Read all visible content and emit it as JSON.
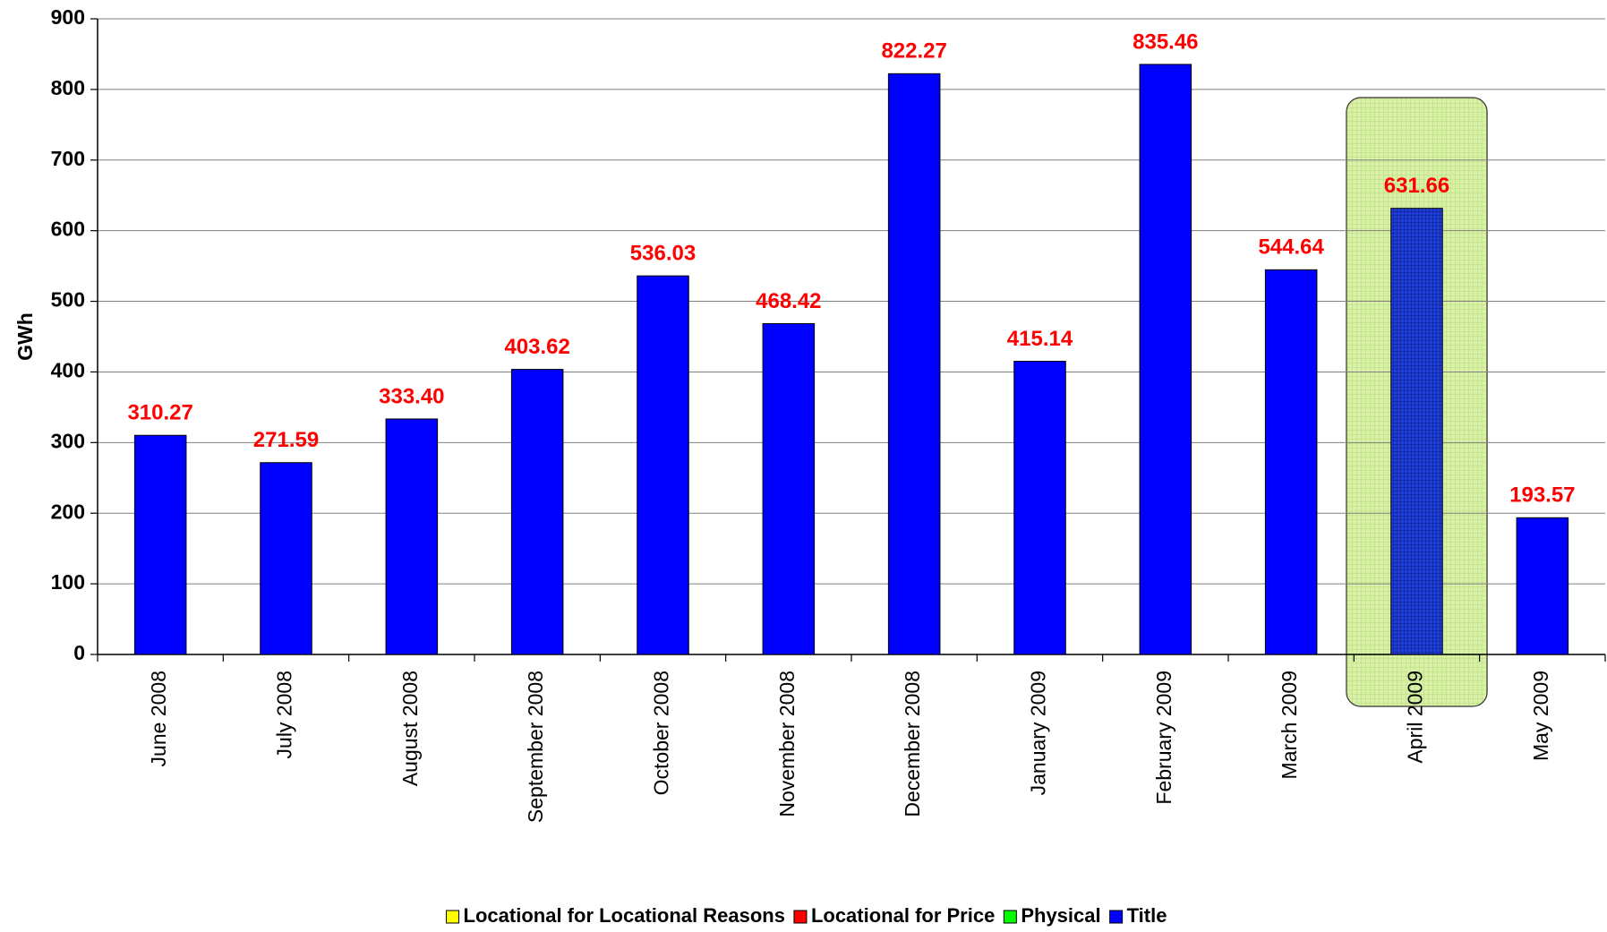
{
  "chart_data": {
    "type": "bar",
    "y_label": "GWh",
    "categories": [
      "June 2008",
      "July 2008",
      "August 2008",
      "September 2008",
      "October 2008",
      "November 2008",
      "December 2008",
      "January 2009",
      "February 2009",
      "March 2009",
      "April 2009",
      "May 2009"
    ],
    "values": [
      310.27,
      271.59,
      333.4,
      403.62,
      536.03,
      468.42,
      822.27,
      415.14,
      835.46,
      544.64,
      631.66,
      193.57
    ],
    "value_labels": [
      "310.27",
      "271.59",
      "333.40",
      "403.62",
      "536.03",
      "468.42",
      "822.27",
      "415.14",
      "835.46",
      "544.64",
      "631.66",
      "193.57"
    ],
    "color": "#0000ff",
    "ylim": [
      0,
      900
    ],
    "yticks": [
      0,
      100,
      200,
      300,
      400,
      500,
      600,
      700,
      800,
      900
    ],
    "grid": true,
    "highlight": {
      "category_index": 10
    },
    "legend": [
      {
        "name": "Locational for Locational Reasons",
        "color": "#ffff00"
      },
      {
        "name": "Locational for Price",
        "color": "#ff0000"
      },
      {
        "name": "Physical",
        "color": "#00ff00"
      },
      {
        "name": "Title",
        "color": "#0000ff"
      }
    ]
  }
}
